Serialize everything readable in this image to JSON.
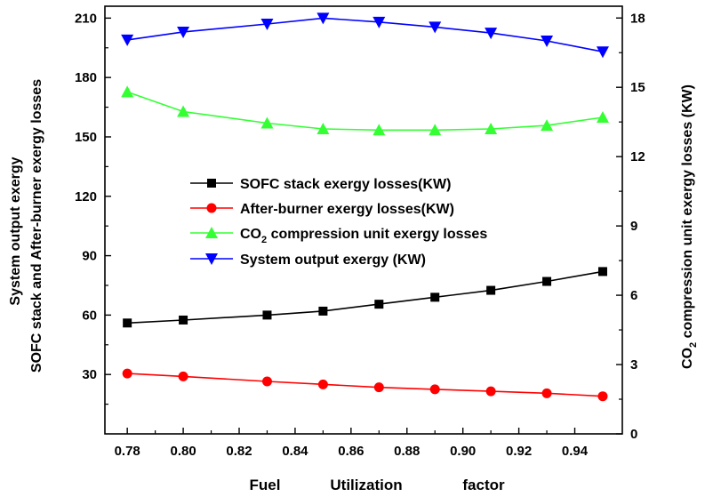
{
  "chart_data": {
    "type": "line",
    "xlabel": [
      "Fuel",
      "Utilization",
      "factor"
    ],
    "ylabel_left": [
      "System output exergy",
      "SOFC stack and After-burner  exergy losses"
    ],
    "ylabel_right": {
      "pre": "CO",
      "sub": "2",
      "post": " compression unit exergy losses (KW)"
    },
    "x": [
      0.78,
      0.8,
      0.83,
      0.85,
      0.87,
      0.89,
      0.91,
      0.93,
      0.95
    ],
    "xticks": [
      "0.78",
      "0.80",
      "0.82",
      "0.84",
      "0.86",
      "0.88",
      "0.90",
      "0.92",
      "0.94"
    ],
    "xlim": [
      0.772,
      0.957
    ],
    "ylim_left": [
      0,
      216
    ],
    "yticks_left": [
      "30",
      "60",
      "90",
      "120",
      "150",
      "180",
      "210"
    ],
    "ylim_right": [
      0,
      18.51
    ],
    "yticks_right": [
      "0",
      "3",
      "6",
      "9",
      "12",
      "15",
      "18"
    ],
    "legend_position": "center-left",
    "series": [
      {
        "name": "SOFC stack exergy losses(KW)",
        "color": "#000000",
        "marker": "square",
        "axis": "left",
        "values": [
          56,
          57.5,
          60,
          62,
          65.5,
          69,
          72.5,
          77,
          82
        ]
      },
      {
        "name": "After-burner exergy losses(KW)",
        "color": "#ff0000",
        "marker": "circle",
        "axis": "left",
        "values": [
          30.5,
          29,
          26.5,
          25,
          23.5,
          22.5,
          21.5,
          20.5,
          19
        ]
      },
      {
        "name_pre": "CO",
        "name_sub": "2",
        "name_post": " compression unit exergy losses",
        "color": "#33ff33",
        "marker": "triangle-up",
        "axis": "right",
        "values": [
          14.8,
          13.95,
          13.45,
          13.2,
          13.15,
          13.15,
          13.2,
          13.35,
          13.7
        ]
      },
      {
        "name": "System output exergy (KW)",
        "color": "#0000ff",
        "marker": "triangle-down",
        "axis": "left",
        "values": [
          199,
          203,
          207,
          210,
          208,
          205.5,
          202.5,
          198.5,
          193
        ]
      }
    ]
  }
}
